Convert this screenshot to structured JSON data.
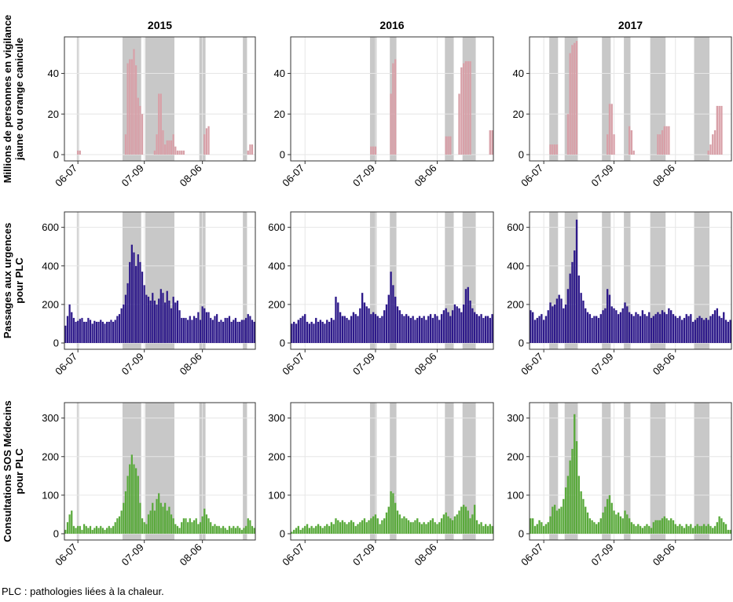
{
  "figure": {
    "note": "PLC : pathologies liées à la chaleur.",
    "years": [
      "2015",
      "2016",
      "2017"
    ],
    "x_ticks": [
      "06-07",
      "07-09",
      "08-06"
    ]
  },
  "chart_data": [
    {
      "id": "vigilance-2015",
      "type": "bar",
      "year": "2015",
      "row": 0,
      "col": 0,
      "ylabel": "Millions de personnes en vigilance jaune ou orange canicule",
      "x_range": [
        "06-01",
        "08-31"
      ],
      "ylim": [
        0,
        58
      ],
      "y_ticks": [
        0,
        20,
        40
      ],
      "color": "#d8a0a8",
      "grid": true,
      "vigilance_periods": [
        [
          "06-07",
          "06-07"
        ],
        [
          "06-29",
          "07-07"
        ],
        [
          "07-10",
          "07-23"
        ],
        [
          "08-05",
          "08-07"
        ],
        [
          "08-26",
          "08-27"
        ]
      ],
      "values": [
        0,
        0,
        0,
        0,
        0,
        0,
        2,
        2,
        0,
        0,
        0,
        0,
        0,
        0,
        0,
        0,
        0,
        0,
        0,
        0,
        0,
        0,
        0,
        0,
        0,
        0,
        0,
        0,
        0,
        10,
        45,
        47,
        47,
        52,
        44,
        28,
        24,
        20,
        0,
        0,
        0,
        0,
        0,
        2,
        10,
        30,
        30,
        12,
        5,
        7,
        7,
        7,
        10,
        4,
        2,
        2,
        2,
        2,
        0,
        0,
        0,
        0,
        0,
        0,
        0,
        0,
        0,
        10,
        13,
        14,
        0,
        0,
        0,
        0,
        0,
        0,
        0,
        0,
        0,
        0,
        0,
        0,
        0,
        0,
        0,
        0,
        0,
        0,
        2,
        5,
        5,
        0
      ]
    },
    {
      "id": "vigilance-2016",
      "type": "bar",
      "year": "2016",
      "row": 0,
      "col": 1,
      "ylabel": "",
      "x_range": [
        "06-01",
        "08-31"
      ],
      "ylim": [
        0,
        58
      ],
      "y_ticks": [
        0,
        20,
        40
      ],
      "color": "#d8a0a8",
      "grid": true,
      "vigilance_periods": [
        [
          "07-07",
          "07-09"
        ],
        [
          "07-16",
          "07-18"
        ],
        [
          "08-10",
          "08-13"
        ],
        [
          "08-18",
          "08-23"
        ]
      ],
      "values": [
        0,
        0,
        0,
        0,
        0,
        0,
        0,
        0,
        0,
        0,
        0,
        0,
        0,
        0,
        0,
        0,
        0,
        0,
        0,
        0,
        0,
        0,
        0,
        0,
        0,
        0,
        0,
        0,
        0,
        0,
        0,
        0,
        0,
        0,
        0,
        0,
        4,
        4,
        4,
        0,
        0,
        0,
        0,
        0,
        0,
        30,
        45,
        47,
        0,
        0,
        0,
        0,
        0,
        0,
        0,
        0,
        0,
        0,
        0,
        0,
        0,
        0,
        0,
        0,
        0,
        0,
        0,
        0,
        0,
        0,
        9,
        9,
        9,
        0,
        0,
        0,
        30,
        43,
        45,
        46,
        46,
        46,
        0,
        0,
        0,
        0,
        0,
        0,
        0,
        0,
        12,
        12
      ]
    },
    {
      "id": "vigilance-2017",
      "type": "bar",
      "year": "2017",
      "row": 0,
      "col": 2,
      "ylabel": "",
      "x_range": [
        "06-01",
        "08-31"
      ],
      "ylim": [
        0,
        58
      ],
      "y_ticks": [
        0,
        20,
        40
      ],
      "color": "#d8a0a8",
      "grid": true,
      "vigilance_periods": [
        [
          "06-10",
          "06-13"
        ],
        [
          "06-17",
          "06-22"
        ],
        [
          "07-04",
          "07-07"
        ],
        [
          "07-14",
          "07-16"
        ],
        [
          "07-26",
          "08-01"
        ],
        [
          "08-15",
          "08-21"
        ]
      ],
      "values": [
        0,
        0,
        0,
        0,
        0,
        0,
        0,
        0,
        0,
        5,
        5,
        5,
        5,
        0,
        0,
        0,
        0,
        20,
        50,
        54,
        55,
        56,
        0,
        0,
        0,
        0,
        0,
        0,
        0,
        0,
        0,
        0,
        0,
        0,
        0,
        10,
        25,
        25,
        10,
        0,
        0,
        0,
        0,
        0,
        0,
        14,
        12,
        2,
        0,
        0,
        0,
        0,
        0,
        0,
        0,
        0,
        0,
        0,
        10,
        10,
        12,
        14,
        14,
        14,
        0,
        0,
        0,
        0,
        0,
        0,
        0,
        0,
        0,
        0,
        0,
        0,
        0,
        0,
        0,
        0,
        0,
        2,
        5,
        10,
        12,
        24,
        24,
        24,
        0,
        0,
        0,
        0
      ]
    },
    {
      "id": "urgences-2015",
      "type": "bar",
      "year": "2015",
      "row": 1,
      "col": 0,
      "ylabel": "Passages aux urgences pour PLC",
      "x_range": [
        "06-01",
        "08-31"
      ],
      "ylim": [
        0,
        680
      ],
      "y_ticks": [
        0,
        200,
        400,
        600
      ],
      "color": "#2e1a8a",
      "grid": true,
      "vigilance_periods": [
        [
          "06-07",
          "06-07"
        ],
        [
          "06-29",
          "07-07"
        ],
        [
          "07-10",
          "07-23"
        ],
        [
          "08-05",
          "08-07"
        ],
        [
          "08-26",
          "08-27"
        ]
      ],
      "values": [
        90,
        140,
        200,
        160,
        130,
        110,
        115,
        125,
        130,
        110,
        110,
        130,
        120,
        100,
        115,
        110,
        110,
        120,
        110,
        100,
        110,
        110,
        120,
        110,
        120,
        140,
        150,
        180,
        200,
        250,
        310,
        420,
        510,
        470,
        400,
        460,
        420,
        370,
        300,
        250,
        240,
        220,
        260,
        220,
        200,
        230,
        280,
        260,
        210,
        270,
        220,
        180,
        240,
        210,
        220,
        170,
        130,
        130,
        130,
        120,
        140,
        120,
        140,
        130,
        160,
        120,
        190,
        180,
        160,
        160,
        130,
        120,
        140,
        150,
        110,
        120,
        110,
        130,
        130,
        140,
        110,
        120,
        130,
        110,
        110,
        120,
        120,
        130,
        150,
        140,
        120,
        110
      ]
    },
    {
      "id": "urgences-2016",
      "type": "bar",
      "year": "2016",
      "row": 1,
      "col": 1,
      "ylabel": "",
      "x_range": [
        "06-01",
        "08-31"
      ],
      "ylim": [
        0,
        680
      ],
      "y_ticks": [
        0,
        200,
        400,
        600
      ],
      "color": "#2e1a8a",
      "grid": true,
      "vigilance_periods": [
        [
          "07-07",
          "07-09"
        ],
        [
          "07-16",
          "07-18"
        ],
        [
          "08-10",
          "08-13"
        ],
        [
          "08-18",
          "08-23"
        ]
      ],
      "values": [
        100,
        110,
        100,
        120,
        130,
        140,
        150,
        110,
        100,
        110,
        100,
        130,
        110,
        120,
        110,
        100,
        120,
        110,
        130,
        120,
        240,
        210,
        160,
        140,
        140,
        130,
        120,
        140,
        160,
        150,
        140,
        180,
        260,
        210,
        190,
        180,
        150,
        160,
        150,
        140,
        130,
        140,
        170,
        200,
        250,
        370,
        300,
        240,
        190,
        170,
        150,
        140,
        150,
        140,
        130,
        140,
        120,
        130,
        140,
        130,
        140,
        120,
        140,
        150,
        130,
        150,
        140,
        120,
        150,
        170,
        180,
        160,
        140,
        170,
        200,
        190,
        180,
        160,
        200,
        280,
        290,
        220,
        180,
        160,
        150,
        140,
        150,
        130,
        140,
        140,
        130,
        150
      ]
    },
    {
      "id": "urgences-2017",
      "type": "bar",
      "year": "2017",
      "row": 1,
      "col": 2,
      "ylabel": "",
      "x_range": [
        "06-01",
        "08-31"
      ],
      "ylim": [
        0,
        680
      ],
      "y_ticks": [
        0,
        200,
        400,
        600
      ],
      "color": "#2e1a8a",
      "grid": true,
      "vigilance_periods": [
        [
          "06-10",
          "06-13"
        ],
        [
          "06-17",
          "06-22"
        ],
        [
          "07-04",
          "07-07"
        ],
        [
          "07-14",
          "07-16"
        ],
        [
          "07-26",
          "08-01"
        ],
        [
          "08-15",
          "08-21"
        ]
      ],
      "values": [
        170,
        160,
        120,
        130,
        140,
        150,
        120,
        140,
        170,
        210,
        190,
        200,
        230,
        250,
        230,
        180,
        200,
        280,
        360,
        420,
        480,
        640,
        350,
        260,
        220,
        180,
        160,
        150,
        130,
        140,
        140,
        130,
        150,
        170,
        180,
        280,
        250,
        190,
        180,
        170,
        150,
        160,
        180,
        210,
        190,
        160,
        150,
        140,
        160,
        150,
        140,
        170,
        150,
        140,
        160,
        130,
        140,
        150,
        160,
        150,
        170,
        160,
        150,
        180,
        170,
        150,
        140,
        130,
        140,
        120,
        130,
        150,
        140,
        150,
        110,
        120,
        130,
        140,
        130,
        120,
        130,
        120,
        140,
        150,
        170,
        180,
        140,
        130,
        160,
        120,
        110,
        120
      ]
    },
    {
      "id": "sos-medecins-2015",
      "type": "bar",
      "year": "2015",
      "row": 2,
      "col": 0,
      "ylabel": "Consultations SOS Médecins pour PLC",
      "x_range": [
        "06-01",
        "08-31"
      ],
      "ylim": [
        0,
        340
      ],
      "y_ticks": [
        0,
        100,
        200,
        300
      ],
      "color": "#5aaa3c",
      "grid": true,
      "vigilance_periods": [
        [
          "06-07",
          "06-07"
        ],
        [
          "06-29",
          "07-07"
        ],
        [
          "07-10",
          "07-23"
        ],
        [
          "08-05",
          "08-07"
        ],
        [
          "08-26",
          "08-27"
        ]
      ],
      "values": [
        10,
        30,
        50,
        60,
        20,
        15,
        20,
        20,
        10,
        25,
        20,
        15,
        20,
        10,
        15,
        20,
        15,
        20,
        15,
        10,
        15,
        20,
        15,
        20,
        30,
        40,
        45,
        60,
        80,
        110,
        150,
        180,
        205,
        180,
        170,
        150,
        80,
        40,
        30,
        25,
        50,
        60,
        80,
        60,
        90,
        105,
        80,
        70,
        80,
        60,
        70,
        50,
        40,
        25,
        20,
        15,
        30,
        40,
        40,
        30,
        40,
        30,
        35,
        40,
        25,
        30,
        45,
        65,
        50,
        40,
        30,
        20,
        25,
        20,
        20,
        15,
        20,
        15,
        10,
        20,
        15,
        20,
        15,
        20,
        15,
        10,
        15,
        20,
        40,
        35,
        20,
        15
      ]
    },
    {
      "id": "sos-medecins-2016",
      "type": "bar",
      "year": "2016",
      "row": 2,
      "col": 1,
      "ylabel": "",
      "x_range": [
        "06-01",
        "08-31"
      ],
      "ylim": [
        0,
        340
      ],
      "y_ticks": [
        0,
        100,
        200,
        300
      ],
      "color": "#5aaa3c",
      "grid": true,
      "vigilance_periods": [
        [
          "07-07",
          "07-09"
        ],
        [
          "07-16",
          "07-18"
        ],
        [
          "08-10",
          "08-13"
        ],
        [
          "08-18",
          "08-23"
        ]
      ],
      "values": [
        5,
        10,
        15,
        20,
        10,
        15,
        20,
        25,
        15,
        20,
        15,
        20,
        25,
        20,
        15,
        20,
        25,
        20,
        30,
        25,
        40,
        35,
        30,
        35,
        30,
        25,
        30,
        35,
        30,
        20,
        25,
        30,
        35,
        40,
        30,
        35,
        40,
        45,
        50,
        40,
        25,
        35,
        40,
        55,
        70,
        110,
        105,
        80,
        60,
        50,
        40,
        45,
        40,
        35,
        30,
        30,
        35,
        40,
        30,
        25,
        30,
        25,
        30,
        35,
        40,
        30,
        25,
        30,
        40,
        50,
        55,
        45,
        40,
        35,
        45,
        50,
        60,
        70,
        75,
        70,
        60,
        40,
        50,
        75,
        35,
        25,
        30,
        20,
        25,
        20,
        25,
        20
      ]
    },
    {
      "id": "sos-medecins-2017",
      "type": "bar",
      "year": "2017",
      "row": 2,
      "col": 2,
      "ylabel": "",
      "x_range": [
        "06-01",
        "08-31"
      ],
      "ylim": [
        0,
        340
      ],
      "y_ticks": [
        0,
        100,
        200,
        300
      ],
      "color": "#5aaa3c",
      "grid": true,
      "vigilance_periods": [
        [
          "06-10",
          "06-13"
        ],
        [
          "06-17",
          "06-22"
        ],
        [
          "07-04",
          "07-07"
        ],
        [
          "07-14",
          "07-16"
        ],
        [
          "07-26",
          "08-01"
        ],
        [
          "08-15",
          "08-21"
        ]
      ],
      "values": [
        40,
        40,
        20,
        25,
        35,
        30,
        20,
        25,
        30,
        45,
        70,
        75,
        60,
        65,
        70,
        90,
        120,
        150,
        190,
        220,
        310,
        240,
        150,
        110,
        90,
        70,
        55,
        40,
        35,
        30,
        25,
        30,
        40,
        55,
        70,
        90,
        100,
        80,
        60,
        50,
        55,
        45,
        40,
        60,
        50,
        40,
        30,
        25,
        20,
        25,
        20,
        15,
        20,
        25,
        20,
        15,
        30,
        35,
        35,
        35,
        40,
        45,
        40,
        35,
        40,
        35,
        25,
        20,
        25,
        20,
        15,
        25,
        20,
        25,
        15,
        20,
        25,
        20,
        20,
        25,
        20,
        25,
        20,
        15,
        20,
        30,
        45,
        40,
        30,
        25,
        10,
        10
      ]
    }
  ]
}
